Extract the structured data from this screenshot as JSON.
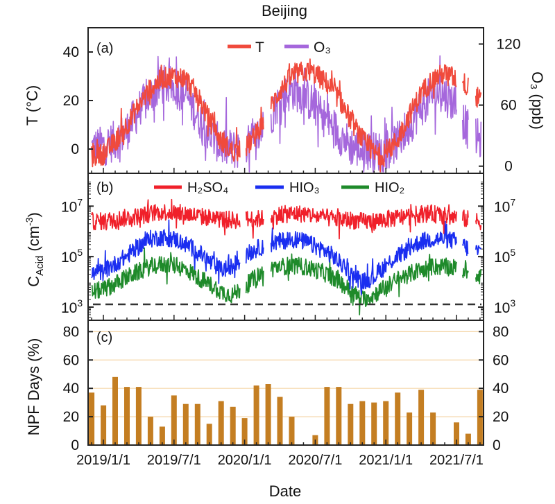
{
  "figure": {
    "title": "Beijing",
    "xlabel": "Date",
    "x_ticks": [
      "2019/1/1",
      "2019/7/1",
      "2020/1/1",
      "2020/7/1",
      "2021/1/1",
      "2021/7/1"
    ],
    "x_tick_months": [
      0,
      6,
      12,
      18,
      24,
      30
    ],
    "x_range_months": [
      -1.3,
      32.3
    ]
  },
  "panel_a": {
    "label": "(a)",
    "ylabel_left": "T (°C)",
    "ylabel_right": "O₃ (ppb)",
    "legend": [
      "T",
      "O₃"
    ],
    "left_ticks": [
      "40",
      "20",
      "0"
    ],
    "right_ticks": [
      "120",
      "60",
      "0"
    ]
  },
  "panel_b": {
    "label": "(b)",
    "ylabel": "C",
    "ylabel_sub": "Acid",
    "ylabel_unit": " (cm",
    "ylabel_sup": "-3",
    "ylabel_close": ")",
    "legend": [
      "H₂SO₄",
      "HIO₃",
      "HIO₂"
    ],
    "tick_base": "10",
    "tick_exps": [
      "7",
      "5",
      "3"
    ]
  },
  "panel_c": {
    "label": "(c)",
    "ylabel": "NPF Days (%)",
    "ticks": [
      "80",
      "60",
      "40",
      "20",
      "0"
    ]
  },
  "colors": {
    "T": "#f04a3c",
    "O3": "#a567dc",
    "H2SO4": "#f0202a",
    "HIO3": "#1a2ef0",
    "HIO2": "#1e8a2a",
    "bar": "#c47e22",
    "grid_c": "#f5d6a8"
  },
  "chart_data": [
    {
      "type": "line",
      "panel": "a",
      "x_unit": "months since 2019/1/1",
      "series": [
        {
          "name": "T",
          "axis": "left",
          "unit": "°C",
          "x": [
            -1,
            0,
            1,
            2,
            3,
            4,
            5,
            6,
            7,
            8,
            9,
            10,
            11,
            12,
            13,
            14,
            15,
            16,
            17,
            18,
            19,
            20,
            21,
            22,
            23,
            24,
            25,
            26,
            27,
            28,
            29,
            30,
            31,
            32
          ],
          "values": [
            -3,
            -2,
            3,
            10,
            18,
            25,
            29,
            30,
            29,
            22,
            12,
            3,
            -1,
            0,
            6,
            15,
            24,
            30,
            32,
            31,
            27,
            21,
            12,
            4,
            -2,
            -2,
            4,
            14,
            23,
            29,
            31,
            29,
            26,
            20
          ]
        },
        {
          "name": "O₃",
          "axis": "right",
          "unit": "ppb",
          "x": [
            -1,
            0,
            1,
            2,
            3,
            4,
            5,
            6,
            7,
            8,
            9,
            10,
            11,
            12,
            13,
            14,
            15,
            16,
            17,
            18,
            19,
            20,
            21,
            22,
            23,
            24,
            25,
            26,
            27,
            28,
            29,
            30,
            31,
            32
          ],
          "values": [
            18,
            20,
            25,
            35,
            55,
            70,
            80,
            78,
            70,
            50,
            32,
            20,
            16,
            18,
            28,
            45,
            65,
            75,
            70,
            58,
            45,
            32,
            20,
            16,
            14,
            16,
            24,
            40,
            58,
            72,
            70,
            60,
            35,
            25
          ]
        }
      ],
      "ylim_left": [
        -10,
        50
      ],
      "ylim_right": [
        -7,
        136
      ]
    },
    {
      "type": "line",
      "panel": "b",
      "y_scale": "log",
      "ylim": [
        300,
        200000000
      ],
      "reference_line": 1000,
      "series": [
        {
          "name": "H₂SO₄",
          "x": [
            -1,
            0,
            1,
            2,
            3,
            4,
            5,
            6,
            7,
            8,
            9,
            10,
            11,
            12,
            13,
            14,
            15,
            16,
            17,
            18,
            19,
            20,
            21,
            22,
            23,
            24,
            25,
            26,
            27,
            28,
            29,
            30,
            31,
            32
          ],
          "values": [
            2500000,
            2500000,
            3000000,
            3500000,
            4000000,
            5000000,
            6000000,
            5500000,
            5000000,
            4000000,
            3500000,
            3000000,
            2800000,
            3000000,
            3000000,
            3500000,
            4500000,
            5000000,
            5000000,
            4000000,
            3500000,
            3000000,
            2800000,
            2500000,
            2500000,
            3000000,
            3500000,
            4000000,
            5000000,
            5000000,
            4000000,
            3500000,
            3000000,
            2500000
          ]
        },
        {
          "name": "HIO₃",
          "x": [
            -1,
            0,
            1,
            2,
            3,
            4,
            5,
            6,
            7,
            8,
            9,
            10,
            11,
            12,
            13,
            14,
            15,
            16,
            17,
            18,
            19,
            20,
            21,
            22,
            23,
            24,
            25,
            26,
            27,
            28,
            29,
            30,
            31,
            32
          ],
          "values": [
            20000,
            25000,
            50000,
            100000,
            250000,
            500000,
            600000,
            500000,
            300000,
            150000,
            60000,
            30000,
            40000,
            100000,
            200000,
            300000,
            400000,
            500000,
            400000,
            250000,
            150000,
            60000,
            20000,
            10000,
            15000,
            40000,
            100000,
            200000,
            400000,
            500000,
            500000,
            400000,
            200000,
            150000
          ]
        },
        {
          "name": "HIO₂",
          "x": [
            -1,
            0,
            1,
            2,
            3,
            4,
            5,
            6,
            7,
            8,
            9,
            10,
            11,
            12,
            13,
            14,
            15,
            16,
            17,
            18,
            19,
            20,
            21,
            22,
            23,
            24,
            25,
            26,
            27,
            28,
            29,
            30,
            31,
            32
          ],
          "values": [
            4000,
            5000,
            8000,
            15000,
            25000,
            40000,
            50000,
            45000,
            30000,
            15000,
            8000,
            4000,
            3000,
            6000,
            15000,
            30000,
            40000,
            45000,
            40000,
            30000,
            20000,
            10000,
            4000,
            2000,
            3000,
            6000,
            12000,
            20000,
            30000,
            40000,
            40000,
            35000,
            25000,
            20000
          ]
        }
      ]
    },
    {
      "type": "bar",
      "panel": "c",
      "ylabel": "NPF Days (%)",
      "ylim": [
        0,
        88
      ],
      "x_unit": "months since 2019/1/1",
      "x": [
        -1,
        0,
        1,
        2,
        3,
        4,
        5,
        6,
        7,
        8,
        9,
        10,
        11,
        12,
        13,
        14,
        15,
        16,
        17,
        18,
        19,
        20,
        21,
        22,
        23,
        24,
        25,
        26,
        27,
        28,
        29,
        30,
        31,
        32
      ],
      "values": [
        37,
        28,
        48,
        41,
        41,
        20,
        13,
        35,
        29,
        29,
        15,
        31,
        27,
        19,
        42,
        43,
        34,
        20,
        0,
        7,
        41,
        41,
        29,
        31,
        30,
        31,
        37,
        23,
        39,
        23,
        0,
        16,
        8,
        39
      ]
    }
  ]
}
